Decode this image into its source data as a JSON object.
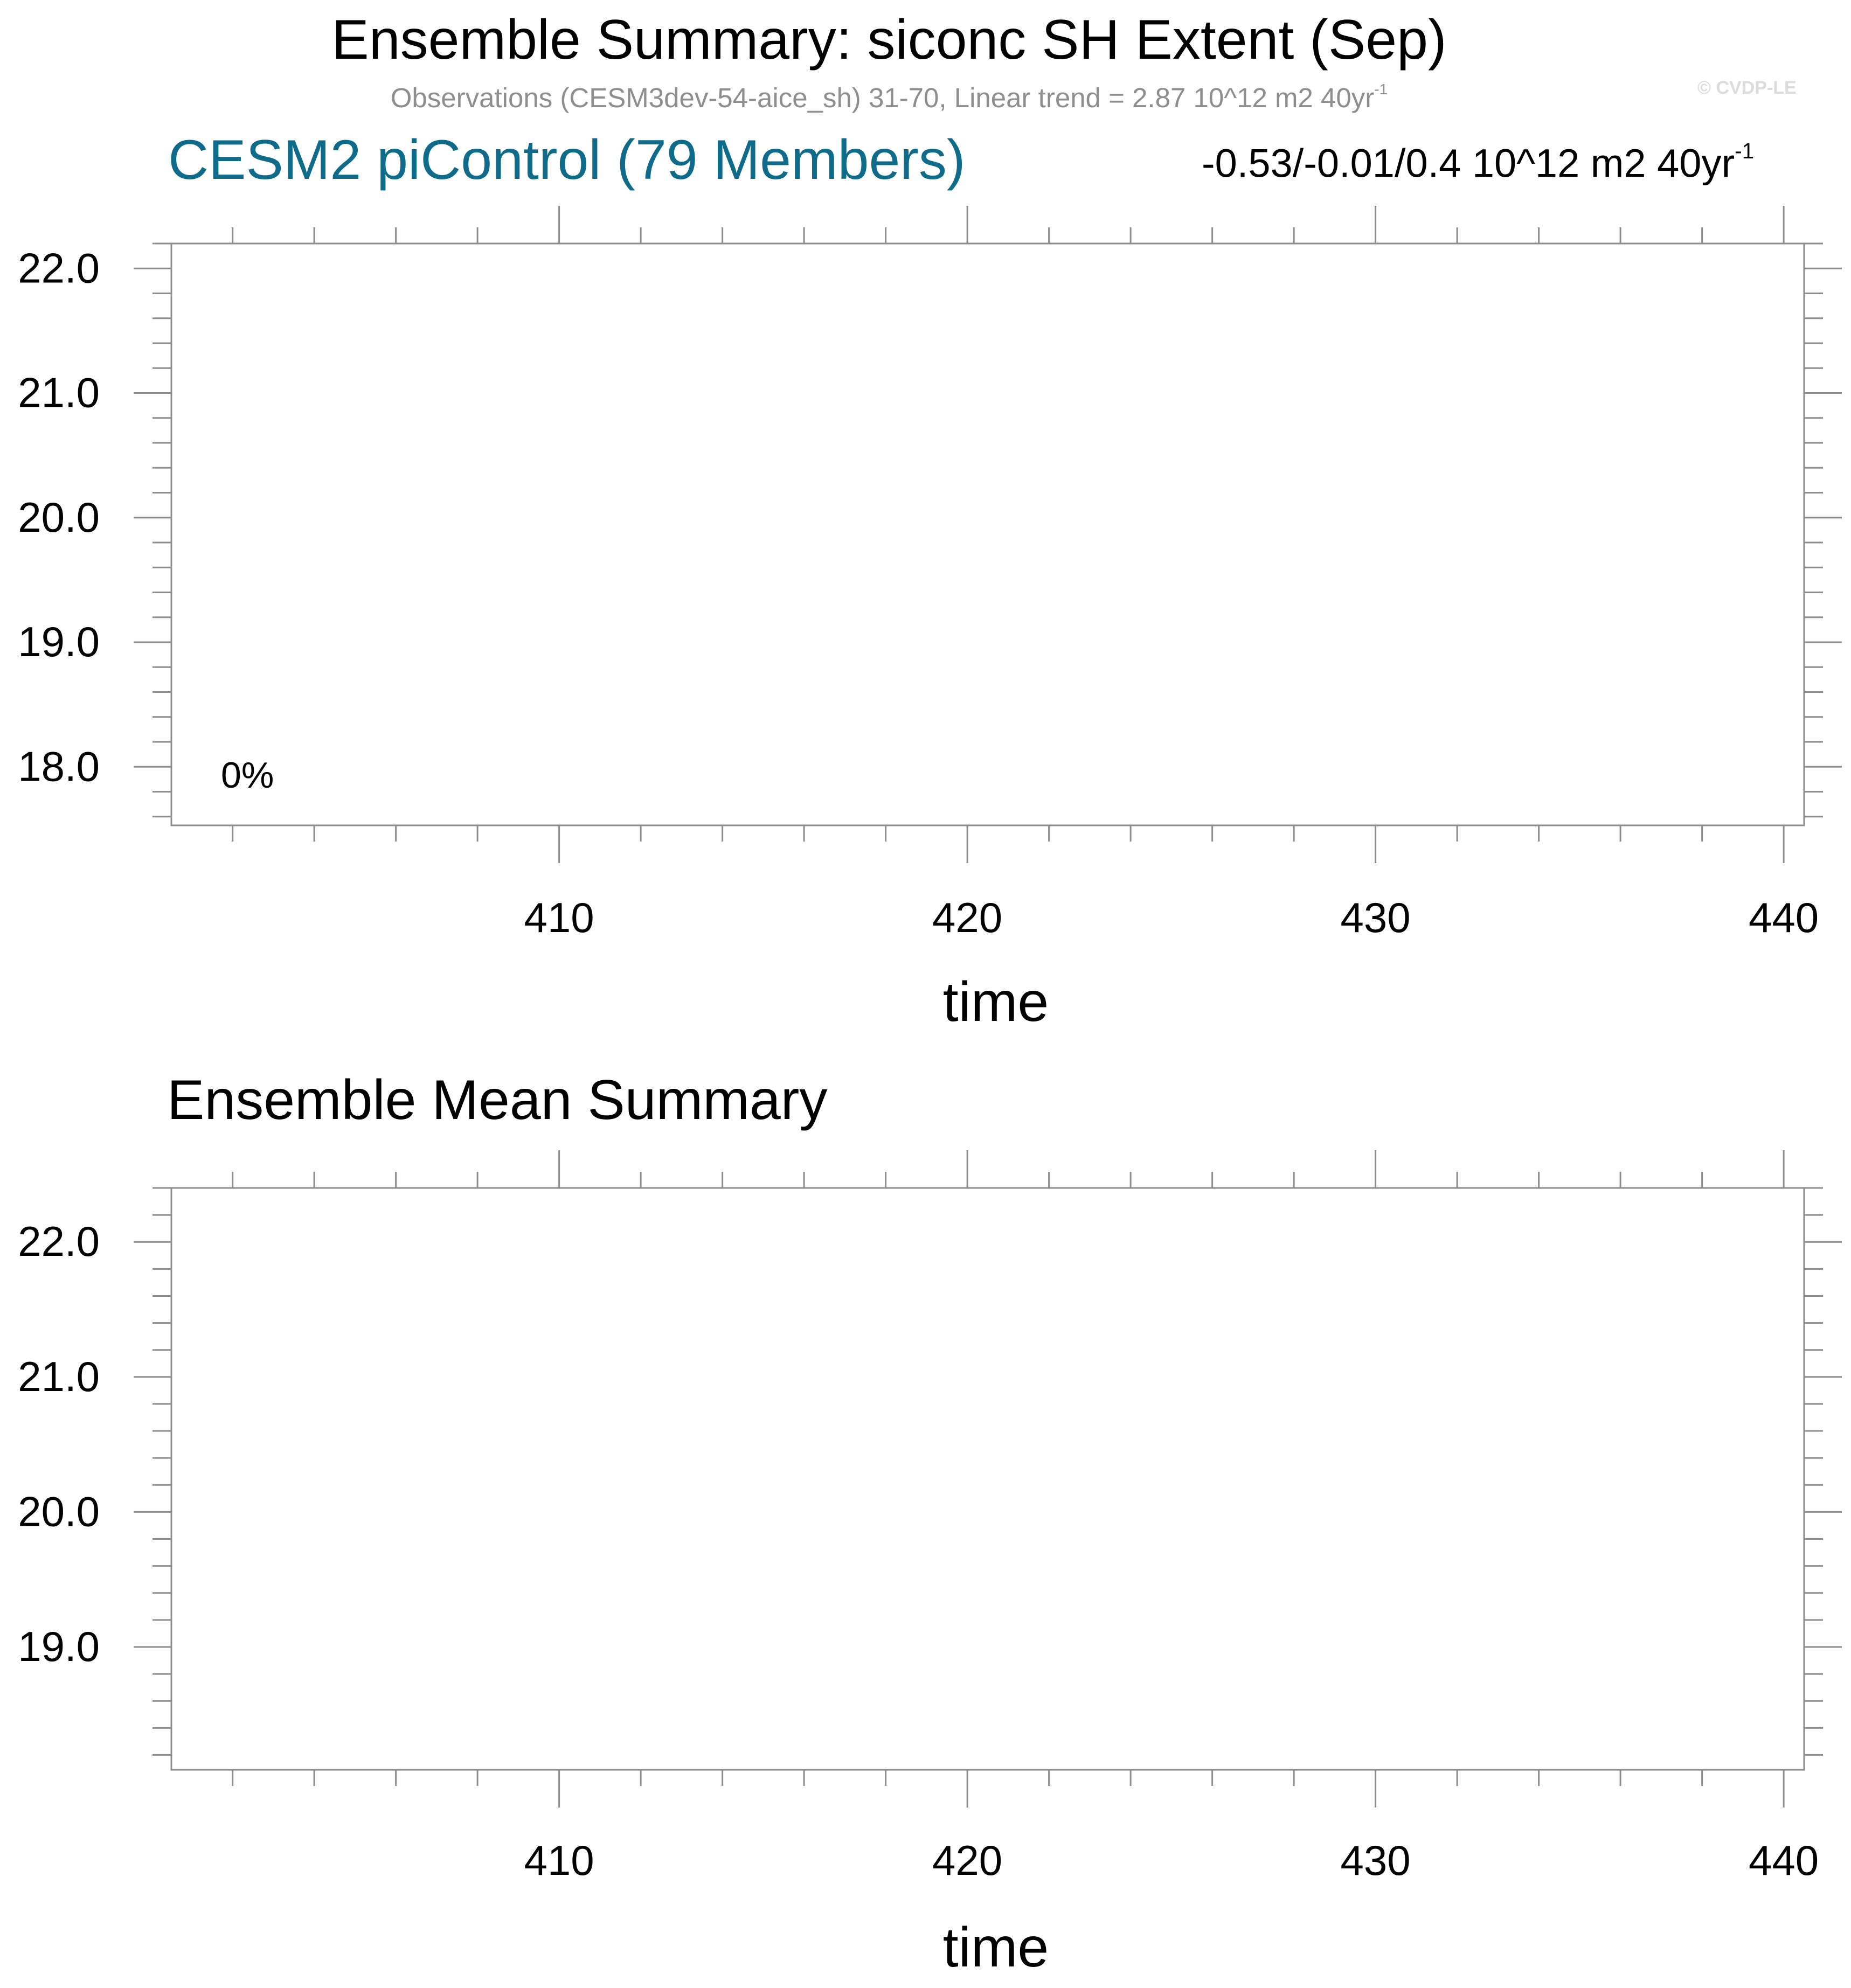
{
  "header": {
    "title": "Ensemble Summary: siconc SH Extent (Sep)",
    "observations_text": "Observations (CESM3dev-54-aice_sh) 31-70, Linear trend = 2.87 10^12 m2 40yr",
    "observations_sup": "-1",
    "copyright": "© CVDP-LE"
  },
  "panel1": {
    "title": "CESM2 piControl (79 Members)",
    "title_color": "#0f6b8a",
    "metric_text": "-0.53/-0.01/0.4 10^12 m2 40yr",
    "metric_sup": "-1",
    "percent_label": "0%"
  },
  "panel2": {
    "title": "Ensemble Mean Summary"
  },
  "chart_data": [
    {
      "type": "line",
      "xlabel": "time",
      "ylabel": "",
      "xlim": [
        400.5,
        440.5
      ],
      "ylim": [
        17.53,
        22.2
      ],
      "xticks": [
        410,
        420,
        430,
        440
      ],
      "yticks": [
        18.0,
        19.0,
        20.0,
        21.0,
        22.0
      ],
      "tick_labels_y": [
        "18.0",
        "19.0",
        "20.0",
        "21.0",
        "22.0"
      ],
      "tick_labels_x": [
        "410",
        "420",
        "430",
        "440"
      ],
      "series": [],
      "grid": false
    },
    {
      "type": "line",
      "xlabel": "time",
      "ylabel": "",
      "xlim": [
        400.5,
        440.5
      ],
      "ylim": [
        18.09,
        22.4
      ],
      "xticks": [
        410,
        420,
        430,
        440
      ],
      "yticks": [
        19.0,
        20.0,
        21.0,
        22.0
      ],
      "tick_labels_y": [
        "19.0",
        "20.0",
        "21.0",
        "22.0"
      ],
      "tick_labels_x": [
        "410",
        "420",
        "430",
        "440"
      ],
      "series": [],
      "grid": false
    }
  ]
}
